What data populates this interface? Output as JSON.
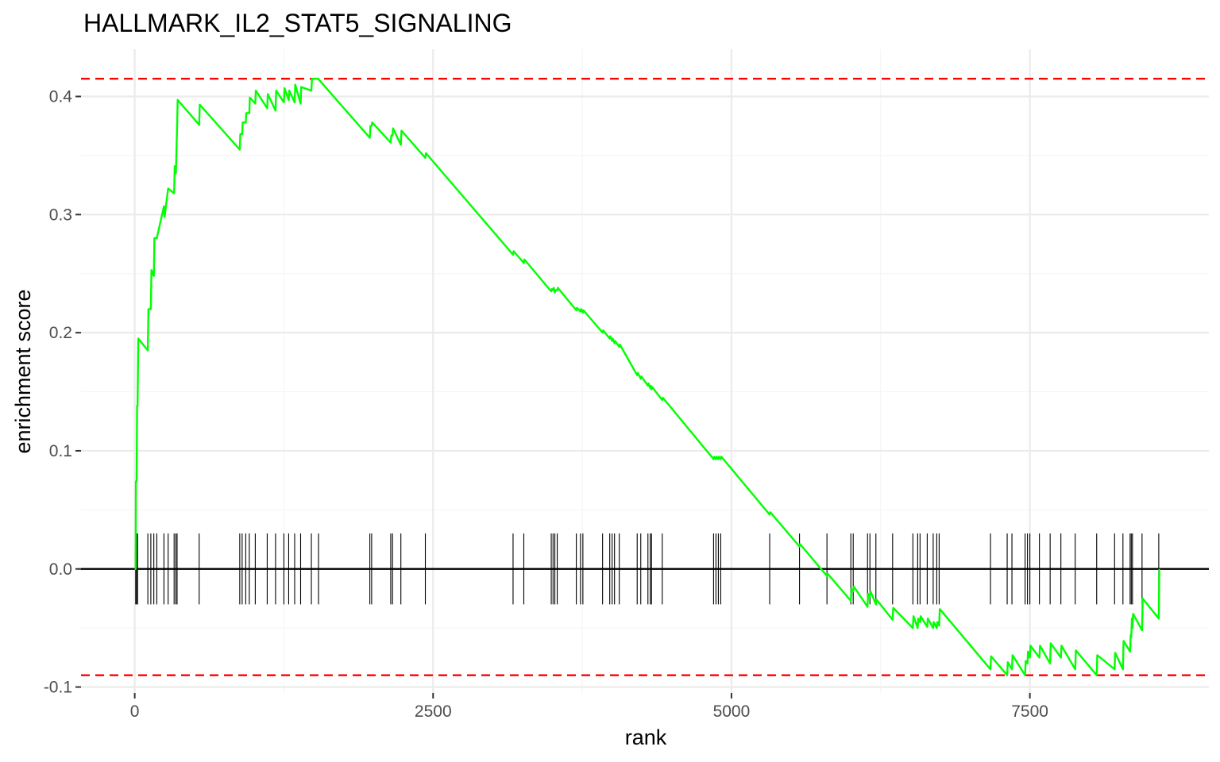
{
  "chart_data": {
    "type": "line",
    "title": "HALLMARK_IL2_STAT5_SIGNALING",
    "xlabel": "rank",
    "ylabel": "enrichment score",
    "xlim": [
      -450,
      9000
    ],
    "ylim": [
      -0.105,
      0.44
    ],
    "xticks": [
      0,
      2500,
      5000,
      7500
    ],
    "xtick_labels": [
      "0",
      "2500",
      "5000",
      "7500"
    ],
    "yticks": [
      -0.1,
      0.0,
      0.1,
      0.2,
      0.3,
      0.4
    ],
    "ytick_labels": [
      "-0.1",
      "0.0",
      "0.1",
      "0.2",
      "0.3",
      "0.4"
    ],
    "grid": true,
    "max_es": 0.415,
    "min_es": -0.09,
    "hit_band": [
      -0.03,
      0.03
    ],
    "colors": {
      "curve": "#00ff00",
      "reference_lines": "#ff0000",
      "hits": "#000000",
      "zero_line": "#000000",
      "grid": "#ebebeb"
    },
    "hits": [
      8,
      16,
      24,
      110,
      135,
      160,
      185,
      245,
      280,
      330,
      345,
      355,
      540,
      880,
      900,
      930,
      960,
      1010,
      1110,
      1180,
      1250,
      1290,
      1340,
      1390,
      1480,
      1540,
      1970,
      1985,
      2145,
      2160,
      2230,
      2435,
      3170,
      3260,
      3490,
      3505,
      3520,
      3540,
      3700,
      3735,
      3755,
      3920,
      3980,
      4000,
      4020,
      4060,
      4210,
      4240,
      4300,
      4320,
      4330,
      4420,
      4850,
      4870,
      4890,
      4910,
      5320,
      5570,
      5800,
      6000,
      6020,
      6140,
      6160,
      6210,
      6350,
      6520,
      6560,
      6580,
      6640,
      6690,
      6720,
      6740,
      7170,
      7310,
      7350,
      7460,
      7480,
      7500,
      7580,
      7670,
      7760,
      7880,
      8060,
      8210,
      8280,
      8340,
      8350,
      8360,
      8440,
      8580
    ],
    "series": [
      {
        "x": [
          0,
          8,
          10,
          16,
          20,
          24,
          30,
          110,
          115,
          135,
          140,
          160,
          165,
          185,
          245,
          250,
          280,
          330,
          335,
          345,
          350,
          355,
          360,
          540,
          545,
          880,
          885,
          900,
          905,
          930,
          935,
          960,
          965,
          1010,
          1015,
          1110,
          1115,
          1180,
          1185,
          1250,
          1255,
          1290,
          1295,
          1340,
          1345,
          1390,
          1395,
          1480,
          1485,
          1540,
          1545,
          1970,
          1975,
          1985,
          1990,
          2145,
          2150,
          2160,
          2165,
          2230,
          2235,
          2435,
          2440,
          3170,
          3175,
          3260,
          3265,
          3490,
          3495,
          3505,
          3510,
          3520,
          3525,
          3540,
          3545,
          3700,
          3705,
          3735,
          3740,
          3755,
          3760,
          3920,
          3925,
          3980,
          3985,
          4000,
          4005,
          4020,
          4025,
          4060,
          4065,
          4210,
          4215,
          4240,
          4245,
          4300,
          4305,
          4320,
          4325,
          4330,
          4335,
          4420,
          4425,
          4850,
          4855,
          4870,
          4875,
          4890,
          4895,
          4910,
          4915,
          5320,
          5325,
          5570,
          5575,
          5800,
          5805,
          6000,
          6005,
          6020,
          6025,
          6140,
          6145,
          6160,
          6165,
          6210,
          6215,
          6350,
          6355,
          6520,
          6525,
          6560,
          6565,
          6580,
          6585,
          6640,
          6645,
          6690,
          6695,
          6720,
          6725,
          6740,
          6745,
          7170,
          7175,
          7310,
          7315,
          7350,
          7355,
          7460,
          7465,
          7480,
          7485,
          7500,
          7505,
          7580,
          7585,
          7670,
          7675,
          7760,
          7765,
          7880,
          7885,
          8060,
          8065,
          8210,
          8215,
          8280,
          8285,
          8340,
          8345,
          8350,
          8355,
          8360,
          8365,
          8440,
          8445,
          8580,
          8585
        ],
        "y": [
          0.0,
          0.0,
          0.074,
          0.074,
          0.138,
          0.138,
          0.195,
          0.185,
          0.22,
          0.22,
          0.253,
          0.248,
          0.28,
          0.28,
          0.307,
          0.298,
          0.322,
          0.318,
          0.341,
          0.335,
          0.355,
          0.375,
          0.397,
          0.376,
          0.393,
          0.355,
          0.368,
          0.368,
          0.378,
          0.378,
          0.386,
          0.386,
          0.399,
          0.394,
          0.405,
          0.39,
          0.402,
          0.388,
          0.405,
          0.395,
          0.407,
          0.397,
          0.405,
          0.395,
          0.41,
          0.394,
          0.408,
          0.405,
          0.415,
          0.415,
          0.414,
          0.365,
          0.375,
          0.375,
          0.378,
          0.361,
          0.367,
          0.367,
          0.373,
          0.359,
          0.371,
          0.348,
          0.352,
          0.266,
          0.269,
          0.259,
          0.262,
          0.235,
          0.237,
          0.236,
          0.238,
          0.234,
          0.236,
          0.236,
          0.238,
          0.219,
          0.221,
          0.218,
          0.22,
          0.217,
          0.219,
          0.2,
          0.202,
          0.195,
          0.197,
          0.193,
          0.195,
          0.191,
          0.193,
          0.188,
          0.19,
          0.164,
          0.166,
          0.161,
          0.163,
          0.155,
          0.157,
          0.153,
          0.155,
          0.152,
          0.154,
          0.143,
          0.145,
          0.093,
          0.095,
          0.093,
          0.095,
          0.093,
          0.095,
          0.093,
          0.095,
          0.046,
          0.048,
          0.019,
          0.021,
          -0.006,
          -0.004,
          -0.027,
          -0.017,
          -0.019,
          -0.015,
          -0.032,
          -0.021,
          -0.023,
          -0.019,
          -0.03,
          -0.026,
          -0.043,
          -0.033,
          -0.05,
          -0.04,
          -0.05,
          -0.042,
          -0.045,
          -0.04,
          -0.049,
          -0.042,
          -0.05,
          -0.045,
          -0.05,
          -0.045,
          -0.048,
          -0.034,
          -0.085,
          -0.074,
          -0.09,
          -0.079,
          -0.085,
          -0.073,
          -0.09,
          -0.078,
          -0.08,
          -0.07,
          -0.075,
          -0.065,
          -0.075,
          -0.065,
          -0.08,
          -0.063,
          -0.075,
          -0.065,
          -0.085,
          -0.069,
          -0.09,
          -0.073,
          -0.085,
          -0.071,
          -0.085,
          -0.061,
          -0.07,
          -0.056,
          -0.058,
          -0.042,
          -0.05,
          -0.038,
          -0.052,
          -0.025,
          -0.042,
          0.0
        ]
      }
    ]
  }
}
